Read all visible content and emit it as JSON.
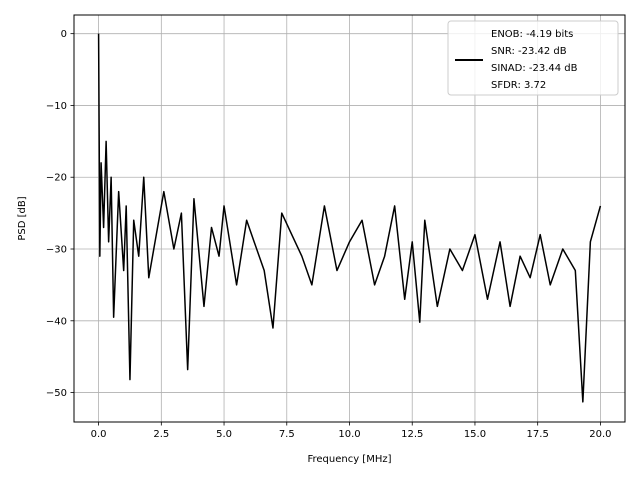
{
  "chart_data": {
    "type": "line",
    "title": "",
    "xlabel": "Frequency [MHz]",
    "ylabel": "PSD [dB]",
    "xlim": [
      -0.98,
      20.98
    ],
    "ylim": [
      -54.1,
      2.6
    ],
    "xticks": [
      0.0,
      2.5,
      5.0,
      7.5,
      10.0,
      12.5,
      15.0,
      17.5,
      20.0
    ],
    "xtick_labels": [
      "0.0",
      "2.5",
      "5.0",
      "7.5",
      "10.0",
      "12.5",
      "15.0",
      "17.5",
      "20.0"
    ],
    "yticks": [
      0,
      -10,
      -20,
      -30,
      -40,
      -50
    ],
    "ytick_labels": [
      "0",
      "−10",
      "−20",
      "−30",
      "−40",
      "−50"
    ],
    "grid": true,
    "legend": {
      "placement": "upper-right",
      "entries": [
        "ENOB: -4.19 bits",
        "SNR: -23.42 dB",
        "SINAD: -23.44 dB",
        "SFDR: 3.72"
      ]
    },
    "series": [
      {
        "color": "#000000",
        "x": [
          0.0,
          0.05,
          0.1,
          0.2,
          0.3,
          0.4,
          0.5,
          0.6,
          0.8,
          1.0,
          1.1,
          1.25,
          1.4,
          1.6,
          1.8,
          2.0,
          2.3,
          2.6,
          3.0,
          3.3,
          3.55,
          3.8,
          4.2,
          4.5,
          4.8,
          5.0,
          5.5,
          5.9,
          6.2,
          6.6,
          6.95,
          7.3,
          7.7,
          8.1,
          8.5,
          9.0,
          9.5,
          10.0,
          10.5,
          11.0,
          11.4,
          11.8,
          12.2,
          12.5,
          12.8,
          13.0,
          13.5,
          14.0,
          14.5,
          15.0,
          15.5,
          16.0,
          16.4,
          16.8,
          17.2,
          17.6,
          18.0,
          18.5,
          19.0,
          19.3,
          19.6,
          20.0
        ],
        "y": [
          0.0,
          -31.0,
          -18.0,
          -27.0,
          -15.0,
          -29.0,
          -20.0,
          -39.5,
          -22.0,
          -33.0,
          -24.0,
          -48.2,
          -26.0,
          -31.0,
          -20.0,
          -34.0,
          -28.0,
          -22.0,
          -30.0,
          -25.0,
          -46.8,
          -23.0,
          -38.0,
          -27.0,
          -31.0,
          -24.0,
          -35.0,
          -26.0,
          -29.0,
          -33.0,
          -41.0,
          -25.0,
          -28.0,
          -31.0,
          -35.0,
          -24.0,
          -33.0,
          -29.0,
          -26.0,
          -35.0,
          -31.0,
          -24.0,
          -37.0,
          -29.0,
          -40.2,
          -26.0,
          -38.0,
          -30.0,
          -33.0,
          -28.0,
          -37.0,
          -29.0,
          -38.0,
          -31.0,
          -34.0,
          -28.0,
          -35.0,
          -30.0,
          -33.0,
          -51.3,
          -29.0,
          -24.0
        ]
      }
    ]
  }
}
